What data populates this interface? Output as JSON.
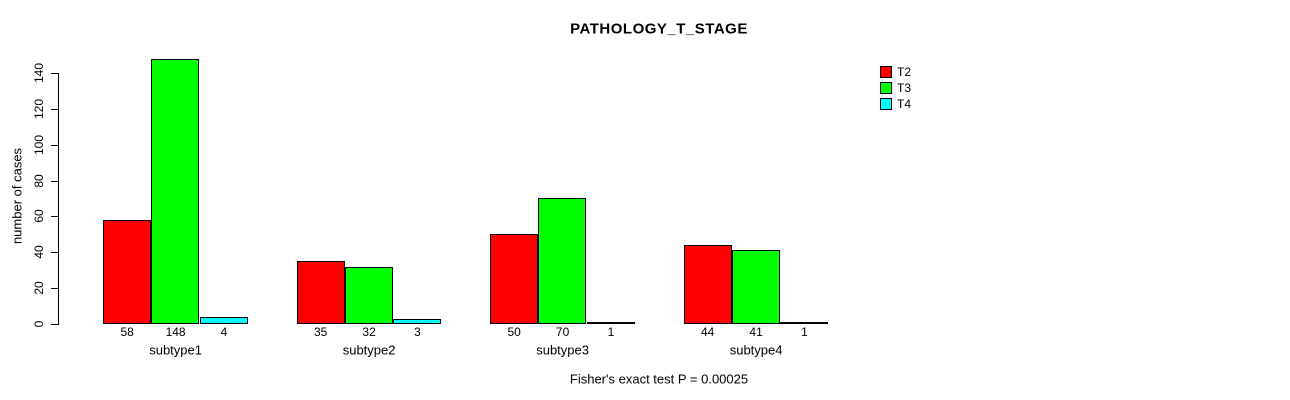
{
  "chart_data": {
    "type": "bar",
    "title": "PATHOLOGY_T_STAGE",
    "xlabel": "",
    "ylabel": "number of cases",
    "footnote": "Fisher's exact test P = 0.00025",
    "categories": [
      "subtype1",
      "subtype2",
      "subtype3",
      "subtype4"
    ],
    "series": [
      {
        "name": "T2",
        "color": "#FF0000",
        "values": [
          58,
          35,
          50,
          44
        ]
      },
      {
        "name": "T3",
        "color": "#00FF00",
        "values": [
          148,
          32,
          70,
          41
        ]
      },
      {
        "name": "T4",
        "color": "#00FFFF",
        "values": [
          4,
          3,
          1,
          1
        ]
      }
    ],
    "ylim": [
      0,
      140
    ],
    "yticks": [
      0,
      20,
      40,
      60,
      80,
      100,
      120,
      140
    ],
    "grid": false,
    "bar_value_labels_shown": true,
    "legend_position": "top-right",
    "legend_entries": [
      "T2",
      "T3",
      "T4"
    ],
    "text_color": "#000000",
    "background_color": "#FFFFFF"
  }
}
